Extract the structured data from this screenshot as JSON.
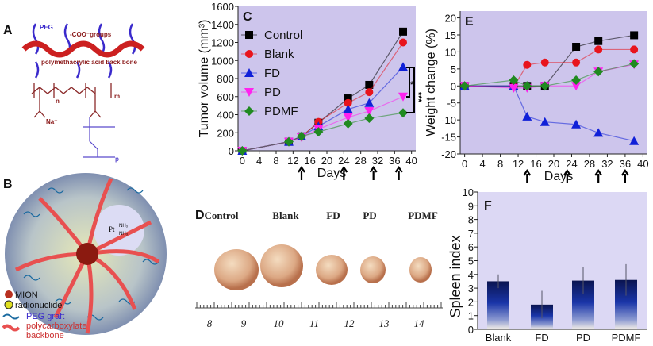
{
  "colors": {
    "plot_bg": "#cdc5ec",
    "control": "#000000",
    "blank": "#e8141c",
    "fd": "#1020d8",
    "pd": "#ff22ee",
    "pdmf": "#208a20",
    "bar_top": "#0a1450",
    "bar_bottom": "#f4efe8"
  },
  "panel_a": {
    "label": "A",
    "peg": "PEG",
    "coo": "-COO⁻groups",
    "backbone": "polymethacrylic acid back bone",
    "n": "n",
    "m": "m",
    "na": "Na⁺",
    "p": "p"
  },
  "panel_b": {
    "label": "B",
    "pt": "Pt",
    "nh3a": "NH₃",
    "nh3b": "NH₃",
    "legend": [
      {
        "icon": "mion-circle",
        "label": "MION"
      },
      {
        "icon": "radionuclide-symbol",
        "label": "radionuclide"
      },
      {
        "icon": "blue-wave",
        "label": "PEG graft"
      },
      {
        "icon": "red-wave",
        "label": "polycarboxylate"
      }
    ],
    "legend_extra": "backbone"
  },
  "panel_d": {
    "label": "D",
    "groups": [
      "Control",
      "Blank",
      "FD",
      "PD",
      "PDMF"
    ],
    "ruler_numbers": [
      "8",
      "9",
      "10",
      "11",
      "12",
      "13",
      "14"
    ]
  },
  "chart_data": [
    {
      "panel": "C",
      "type": "line",
      "xlabel": "Days",
      "ylabel": "Tumor volume (mm³)",
      "xlim": [
        -1,
        41
      ],
      "ylim": [
        0,
        1600
      ],
      "xticks": [
        "0",
        "4",
        "8",
        "12",
        "16",
        "20",
        "24",
        "28",
        "32",
        "36",
        "40"
      ],
      "yticks": [
        "0",
        "200",
        "400",
        "600",
        "800",
        "1000",
        "1200",
        "1400",
        "1600"
      ],
      "legend": "top-left",
      "treatment_arrows_days": [
        14,
        24,
        31,
        37
      ],
      "significance": [
        {
          "between": [
            "FD",
            "PD"
          ],
          "label": "*"
        },
        {
          "between": [
            "FD",
            "PDMF"
          ],
          "label": "***"
        }
      ],
      "x": [
        0,
        11,
        14,
        18,
        25,
        30,
        38
      ],
      "series": [
        {
          "name": "Control",
          "marker": "square",
          "color": "#000000",
          "values": [
            0,
            100,
            160,
            310,
            580,
            730,
            1320
          ]
        },
        {
          "name": "Blank",
          "marker": "circle",
          "color": "#e8141c",
          "values": [
            0,
            100,
            155,
            320,
            530,
            650,
            1200
          ]
        },
        {
          "name": "FD",
          "marker": "triangle-up",
          "color": "#1020d8",
          "values": [
            0,
            100,
            160,
            270,
            460,
            530,
            930
          ]
        },
        {
          "name": "PD",
          "marker": "triangle-down",
          "color": "#ff22ee",
          "values": [
            0,
            100,
            150,
            240,
            370,
            440,
            600
          ]
        },
        {
          "name": "PDMF",
          "marker": "diamond",
          "color": "#208a20",
          "values": [
            0,
            100,
            160,
            210,
            300,
            360,
            420
          ]
        }
      ]
    },
    {
      "panel": "E",
      "type": "line",
      "xlabel": "Days",
      "ylabel": "Weight change (%)",
      "xlim": [
        -1,
        41
      ],
      "ylim": [
        -20,
        22
      ],
      "xticks": [
        "0",
        "4",
        "8",
        "12",
        "16",
        "20",
        "24",
        "28",
        "32",
        "36",
        "40"
      ],
      "yticks": [
        "-20",
        "-15",
        "-10",
        "-5",
        "0",
        "5",
        "10",
        "15",
        "20"
      ],
      "treatment_arrows_days": [
        14,
        23,
        30,
        36
      ],
      "x": [
        0,
        11,
        14,
        18,
        25,
        30,
        38
      ],
      "series": [
        {
          "marker": "square",
          "color": "#000000",
          "values": [
            0,
            0,
            0,
            0,
            11.5,
            13.2,
            14.9
          ]
        },
        {
          "marker": "circle",
          "color": "#e8141c",
          "values": [
            0,
            -0.3,
            6.2,
            6.9,
            6.9,
            10.7,
            10.7
          ]
        },
        {
          "marker": "triangle-up",
          "color": "#1020d8",
          "values": [
            0,
            0,
            -9,
            -10.6,
            -11.3,
            -13.8,
            -16.2
          ]
        },
        {
          "marker": "triangle-down",
          "color": "#ff22ee",
          "values": [
            0,
            -0.6,
            -0.6,
            0,
            0,
            4.2,
            6.3
          ]
        },
        {
          "marker": "diamond",
          "color": "#208a20",
          "values": [
            0,
            1.7,
            0,
            0,
            1.7,
            4.2,
            6.5
          ]
        }
      ]
    },
    {
      "panel": "F",
      "type": "bar",
      "ylabel": "Spleen index",
      "ylim": [
        0,
        10
      ],
      "yticks": [
        "0",
        "1",
        "2",
        "3",
        "4",
        "5",
        "6",
        "7",
        "8",
        "9",
        "10"
      ],
      "categories": [
        "Blank",
        "FD",
        "PD",
        "PDMF"
      ],
      "values": [
        3.5,
        1.8,
        3.55,
        3.6
      ],
      "errors": [
        0.5,
        1.0,
        1.0,
        1.15
      ]
    }
  ]
}
